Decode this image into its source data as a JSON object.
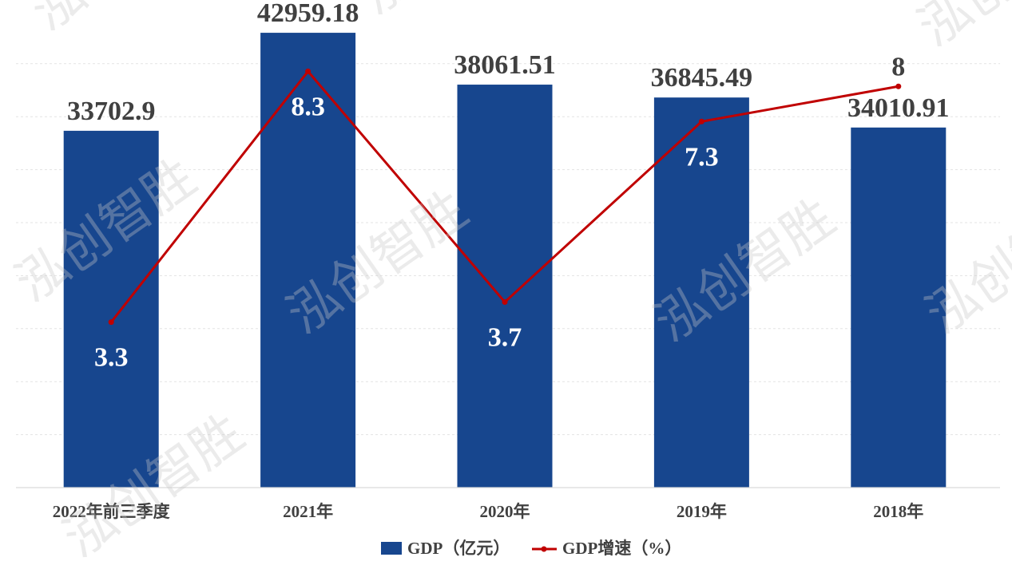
{
  "chart_data": {
    "type": "bar",
    "categories": [
      "2022年前三季度",
      "2021年",
      "2020年",
      "2019年",
      "2018年"
    ],
    "series": [
      {
        "name": "GDP（亿元）",
        "type": "bar",
        "color": "#17468e",
        "values": [
          33702.9,
          42959.18,
          38061.51,
          36845.49,
          34010.91
        ]
      },
      {
        "name": "GDP增速（%）",
        "type": "line",
        "color": "#c00000",
        "values": [
          3.3,
          8.3,
          3.7,
          7.3,
          8
        ]
      }
    ],
    "value_labels": [
      "33702.9",
      "42959.18",
      "38061.51",
      "36845.49",
      "34010.91"
    ],
    "rate_labels": [
      "3.3",
      "8.3",
      "3.7",
      "7.3",
      "8"
    ],
    "ylim": [
      0,
      45000
    ],
    "y2lim": [
      0,
      9.5
    ],
    "grid": true,
    "legend_position": "bottom"
  },
  "watermark": "泓创智胜"
}
